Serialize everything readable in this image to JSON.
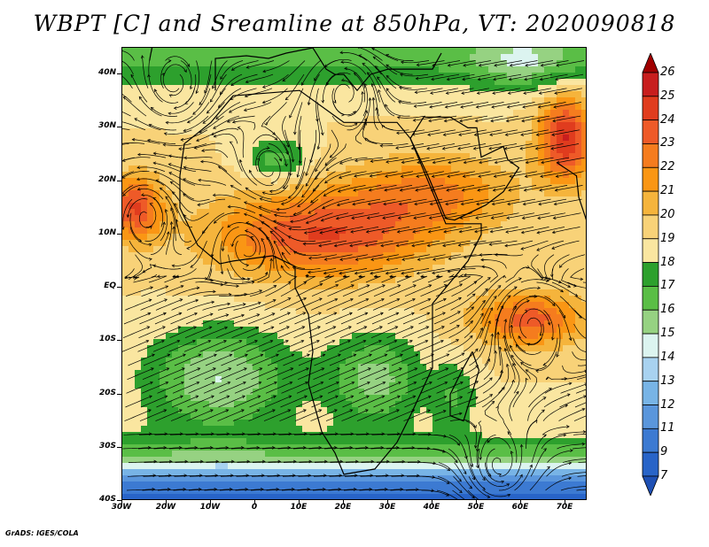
{
  "title": "WBPT [C] and Sreamline at 850hPa, VT: 2020090818",
  "credit": "GrADS: IGES/COLA",
  "map": {
    "projection": "latlon",
    "lat_range": [
      -40,
      45
    ],
    "lon_range": [
      -30,
      75
    ],
    "lat_labels": [
      "40N",
      "30N",
      "20N",
      "10N",
      "EQ",
      "10S",
      "20S",
      "30S",
      "40S"
    ],
    "lat_values": [
      40,
      30,
      20,
      10,
      0,
      -10,
      -20,
      -30,
      -40
    ],
    "lon_labels": [
      "30W",
      "20W",
      "10W",
      "0",
      "10E",
      "20E",
      "30E",
      "40E",
      "50E",
      "60E",
      "70E"
    ],
    "lon_values": [
      -30,
      -20,
      -10,
      0,
      10,
      20,
      30,
      40,
      50,
      60,
      70
    ],
    "variable": "wet-bulb potential temperature",
    "overlay": "streamlines"
  },
  "colorbar": {
    "labels": [
      "26",
      "25",
      "24",
      "23",
      "22",
      "21",
      "20",
      "19",
      "18",
      "17",
      "16",
      "15",
      "14",
      "13",
      "12",
      "11",
      "9",
      "7"
    ],
    "colors": [
      "#a00000",
      "#c81e1e",
      "#e03c1e",
      "#ee5a28",
      "#f57c1e",
      "#fa9614",
      "#f5b43c",
      "#f8d278",
      "#fae6a0",
      "#2da02d",
      "#5abe46",
      "#96d282",
      "#dcf4f0",
      "#a8d2f0",
      "#78b4e6",
      "#5a96dc",
      "#3c7ad2",
      "#2864c8",
      "#1e50b4"
    ]
  }
}
